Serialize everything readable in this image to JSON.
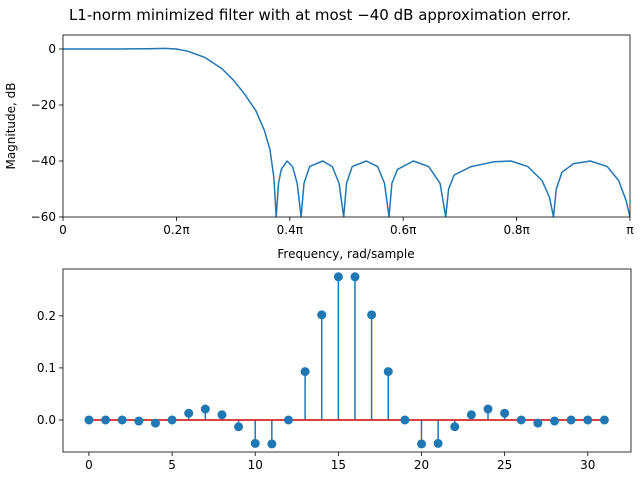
{
  "chart_data": [
    {
      "type": "line",
      "title": "L1-norm minimized filter with at most −40 dB approximation error.",
      "xlabel": "Frequency, rad/sample",
      "ylabel": "Magnitude, dB",
      "xlim": [
        0,
        1
      ],
      "ylim": [
        -60,
        5
      ],
      "x_unit": "π rad/sample",
      "xticks": [
        0,
        0.2,
        0.4,
        0.6,
        0.8,
        1.0
      ],
      "xtick_labels": [
        "0",
        "0.2π",
        "0.4π",
        "0.6π",
        "0.8π",
        "π"
      ],
      "yticks": [
        0,
        -20,
        -40,
        -60
      ],
      "ytick_labels": [
        "0",
        "−20",
        "−40",
        "−60"
      ],
      "color": "#1f77b4",
      "points": [
        [
          0,
          0
        ],
        [
          0.1,
          0
        ],
        [
          0.15,
          0.1
        ],
        [
          0.18,
          0.2
        ],
        [
          0.2,
          0
        ],
        [
          0.22,
          -0.8
        ],
        [
          0.25,
          -3
        ],
        [
          0.28,
          -7
        ],
        [
          0.3,
          -11
        ],
        [
          0.32,
          -16
        ],
        [
          0.34,
          -22
        ],
        [
          0.355,
          -29
        ],
        [
          0.365,
          -36
        ],
        [
          0.372,
          -46
        ],
        [
          0.376,
          -60
        ],
        [
          0.38,
          -48
        ],
        [
          0.385,
          -43
        ],
        [
          0.395,
          -40
        ],
        [
          0.405,
          -42
        ],
        [
          0.413,
          -48
        ],
        [
          0.42,
          -60
        ],
        [
          0.425,
          -48
        ],
        [
          0.435,
          -42
        ],
        [
          0.458,
          -40
        ],
        [
          0.475,
          -42
        ],
        [
          0.487,
          -48
        ],
        [
          0.495,
          -60
        ],
        [
          0.5,
          -48
        ],
        [
          0.51,
          -42
        ],
        [
          0.535,
          -40
        ],
        [
          0.555,
          -42
        ],
        [
          0.567,
          -48
        ],
        [
          0.575,
          -60
        ],
        [
          0.58,
          -48
        ],
        [
          0.59,
          -43
        ],
        [
          0.618,
          -40
        ],
        [
          0.645,
          -42
        ],
        [
          0.665,
          -48
        ],
        [
          0.675,
          -60
        ],
        [
          0.68,
          -50
        ],
        [
          0.69,
          -45
        ],
        [
          0.72,
          -42
        ],
        [
          0.76,
          -40.3
        ],
        [
          0.79,
          -40
        ],
        [
          0.82,
          -42
        ],
        [
          0.845,
          -47
        ],
        [
          0.858,
          -53
        ],
        [
          0.865,
          -60
        ],
        [
          0.87,
          -50
        ],
        [
          0.88,
          -44
        ],
        [
          0.9,
          -41
        ],
        [
          0.93,
          -40
        ],
        [
          0.96,
          -42
        ],
        [
          0.98,
          -47
        ],
        [
          0.993,
          -54
        ],
        [
          1.0,
          -60
        ]
      ]
    },
    {
      "type": "stem",
      "xlim": [
        -1.56,
        32.6
      ],
      "ylim": [
        -0.0615,
        0.29
      ],
      "xticks": [
        0,
        5,
        10,
        15,
        20,
        25,
        30
      ],
      "xtick_labels": [
        "0",
        "5",
        "10",
        "15",
        "20",
        "25",
        "30"
      ],
      "yticks": [
        0.0,
        0.1,
        0.2
      ],
      "ytick_labels": [
        "0.0",
        "0.1",
        "0.2"
      ],
      "marker_color": "#1f77b4",
      "baseline_color": "#d62728",
      "x": [
        0,
        1,
        2,
        3,
        4,
        5,
        6,
        7,
        8,
        9,
        10,
        11,
        12,
        13,
        14,
        15,
        16,
        17,
        18,
        19,
        20,
        21,
        22,
        23,
        24,
        25,
        26,
        27,
        28,
        29,
        30,
        31
      ],
      "values": [
        0.0,
        0.0,
        0.0,
        -0.002,
        -0.006,
        0.0,
        0.013,
        0.021,
        0.01,
        -0.013,
        -0.045,
        -0.046,
        0.0,
        0.093,
        0.202,
        0.275,
        0.275,
        0.202,
        0.093,
        0.0,
        -0.046,
        -0.045,
        -0.013,
        0.01,
        0.021,
        0.013,
        0.0,
        -0.006,
        -0.002,
        0.0,
        0.0,
        0.0
      ]
    }
  ]
}
